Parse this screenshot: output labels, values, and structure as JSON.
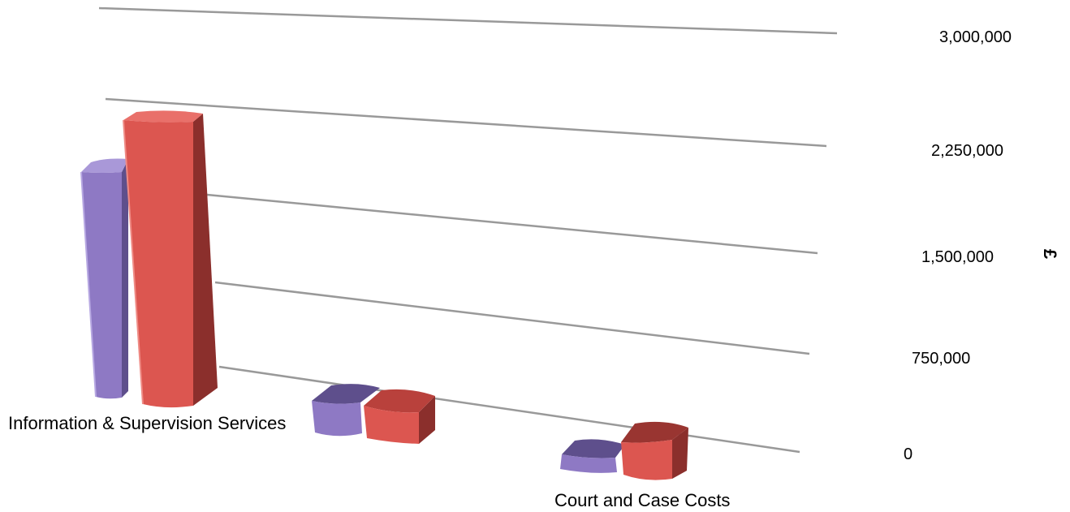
{
  "chart_data": {
    "type": "bar",
    "categories": [
      "Information & Supervision Services",
      "",
      "Court and Case Costs"
    ],
    "series": [
      {
        "values": [
          2100000,
          90000,
          60000
        ]
      },
      {
        "values": [
          2500000,
          90000,
          50000
        ]
      }
    ],
    "ylim": [
      0,
      3000000
    ],
    "y_ticks": [
      "0",
      "750,000",
      "1,500,000",
      "2,250,000",
      "3,000,000"
    ],
    "ylabel": "£",
    "grid": true,
    "style": "3d-clustered-column",
    "colors": {
      "series_1_front": "#8e79c4",
      "series_1_side": "#5e4f8c",
      "series_1_top": "#a998d8",
      "series_2_front": "#dc5650",
      "series_2_side": "#8b2f2c",
      "series_2_top": "#e9706a",
      "grid": "#999999"
    }
  }
}
